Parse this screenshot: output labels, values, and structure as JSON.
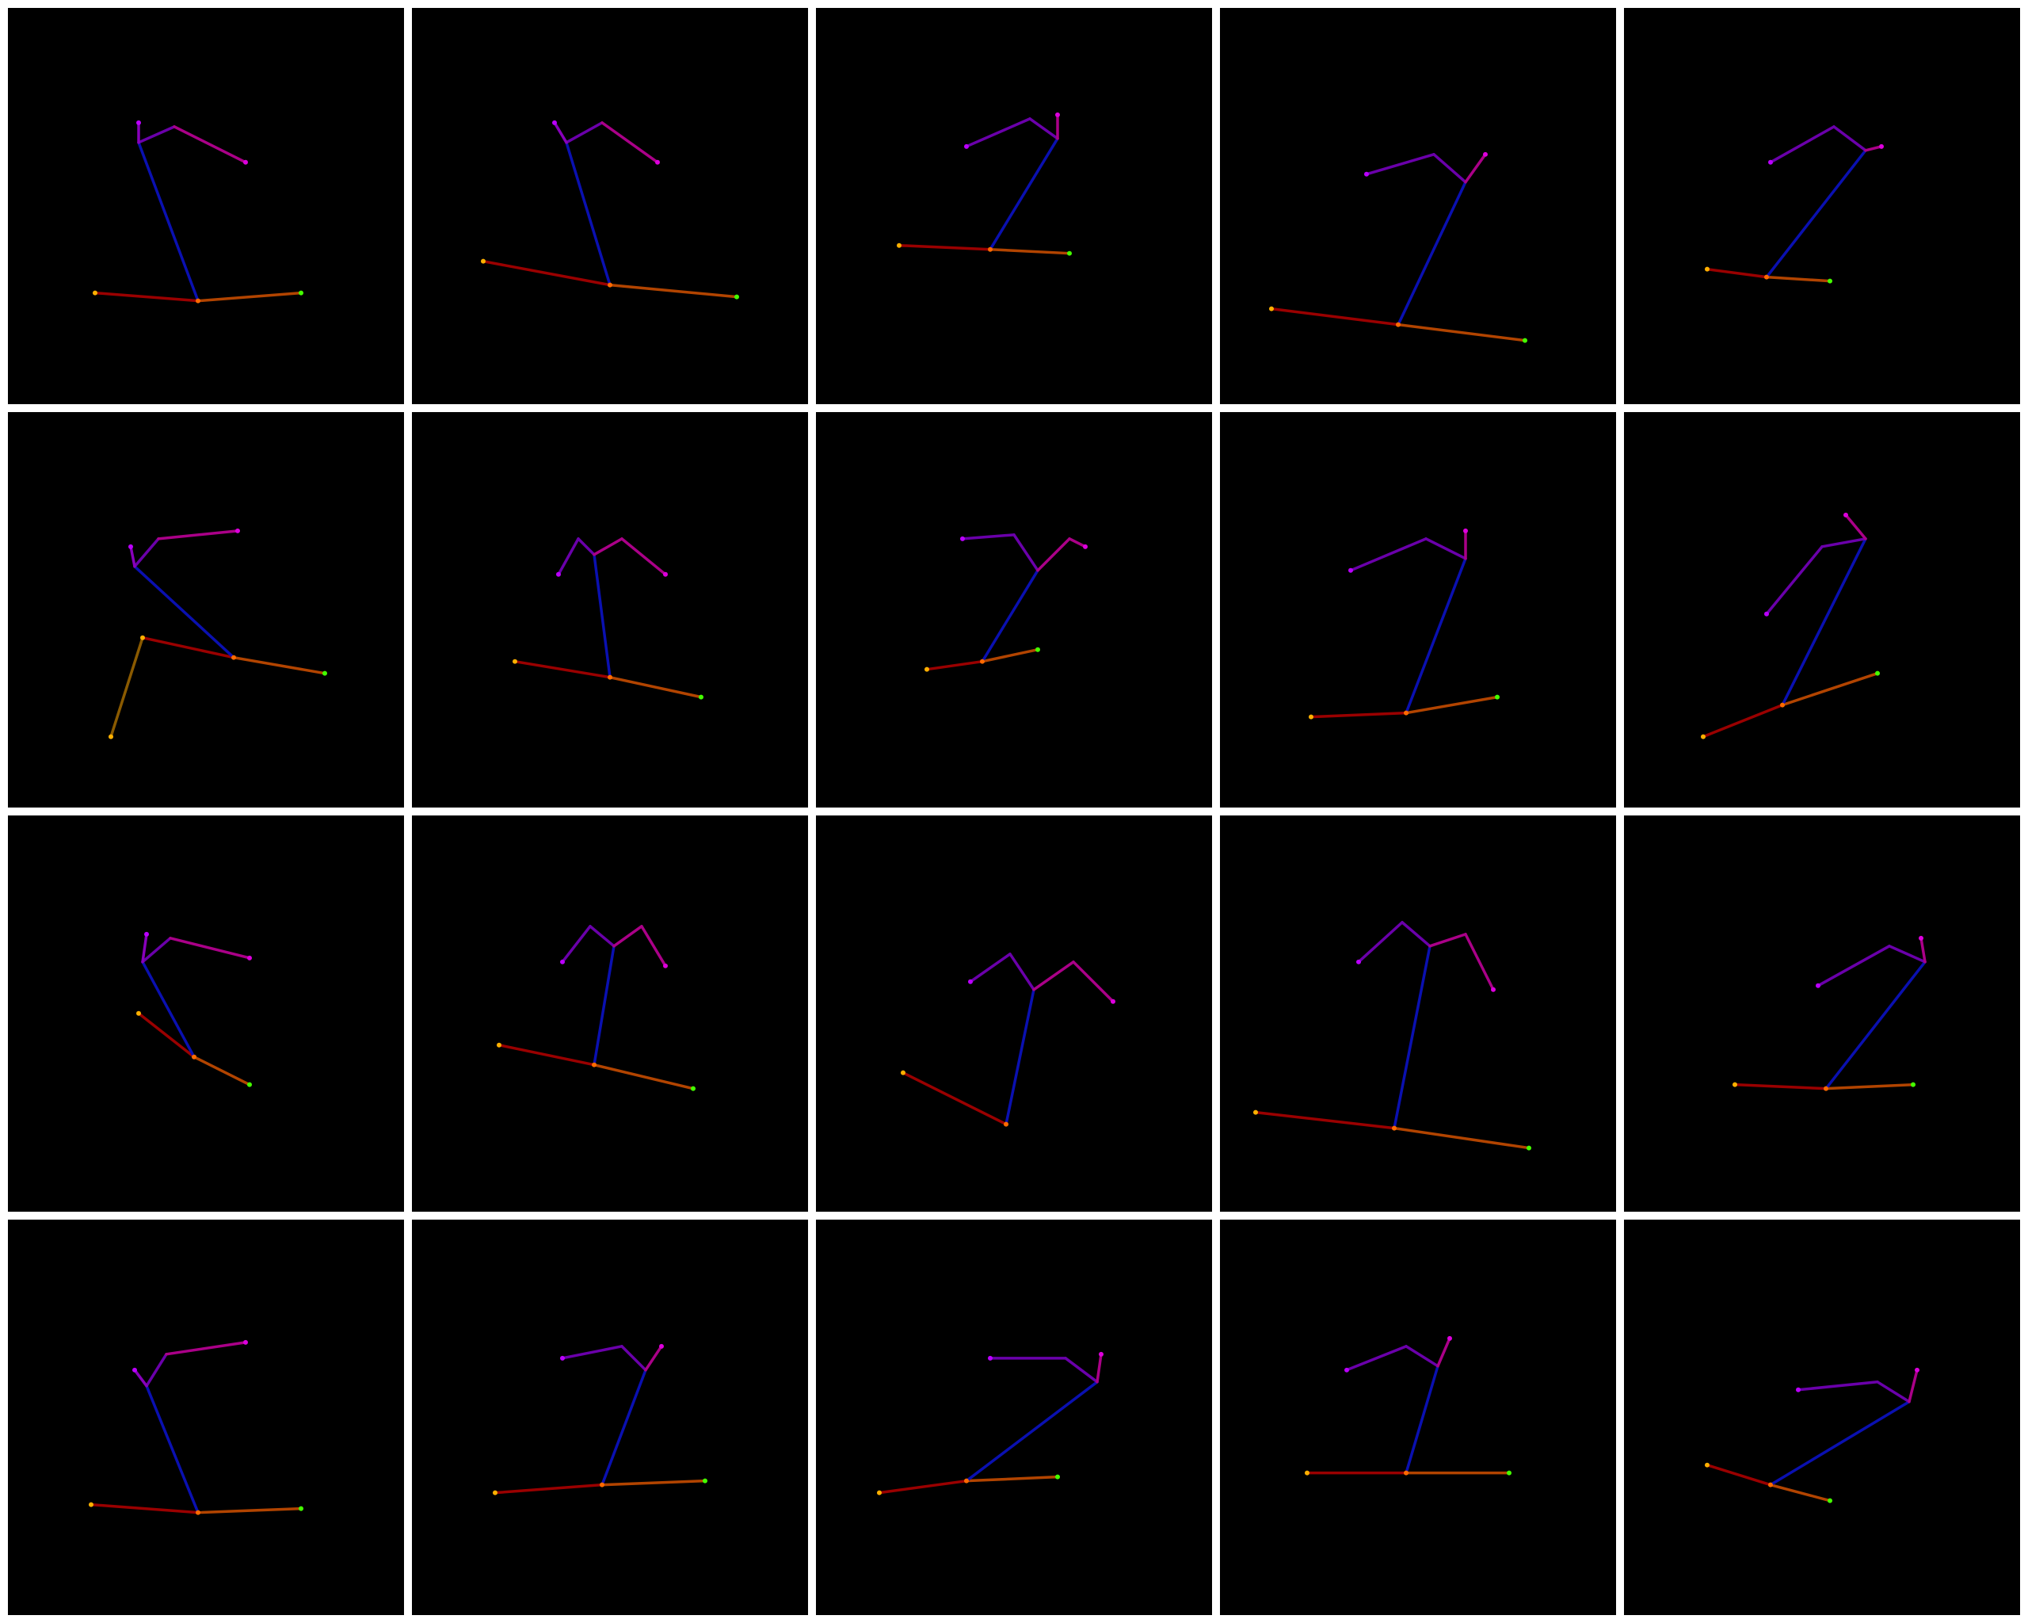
{
  "grid": {
    "rows": 4,
    "cols": 5
  },
  "colors": {
    "background": "#000000",
    "border": "#ffffff",
    "left_leg": "#9a0000",
    "right_leg": "#b24400",
    "lower_leg": "#8a5a00",
    "spine": "#0a10b0",
    "left_arm": "#6a00aa",
    "right_arm": "#aa0088",
    "head": "#8800bb",
    "left_end": "#ffb000",
    "right_end": "#44ff00",
    "pelvis": "#ff6a00",
    "arm_end": "#dd00dd",
    "purple_end": "#bb00ff"
  },
  "icons": [
    "stick-figure-pose"
  ]
}
